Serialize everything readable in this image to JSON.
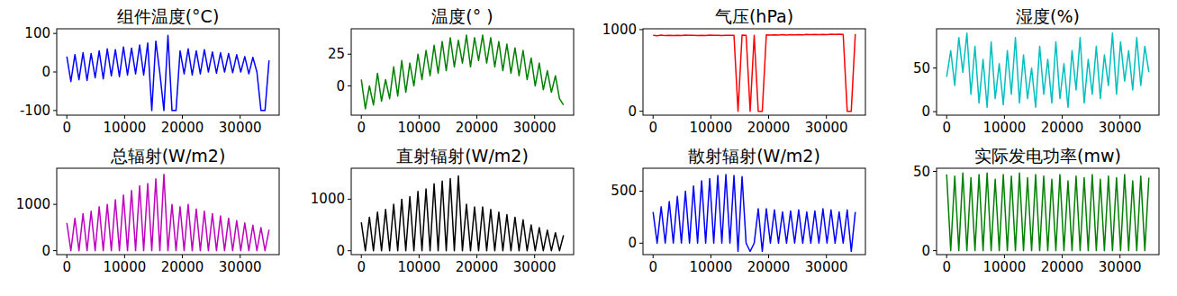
{
  "chart_data": [
    {
      "type": "line",
      "title": "组件温度(°C)",
      "color": "#0000ff",
      "x": [
        0,
        700,
        1400,
        2100,
        2800,
        3500,
        4200,
        4900,
        5600,
        6300,
        7000,
        7700,
        8400,
        9100,
        9800,
        10500,
        11200,
        11900,
        12600,
        13300,
        14000,
        14700,
        15400,
        16100,
        16800,
        17500,
        18200,
        18900,
        19600,
        20300,
        21000,
        21700,
        22400,
        23100,
        23800,
        24500,
        25200,
        25900,
        26600,
        27300,
        28000,
        28700,
        29400,
        30100,
        30800,
        31500,
        32200,
        32900,
        33600,
        34300,
        35000
      ],
      "values": [
        40,
        -25,
        45,
        -20,
        50,
        -22,
        48,
        -15,
        55,
        -18,
        60,
        -10,
        58,
        -12,
        65,
        -8,
        62,
        -5,
        70,
        -8,
        75,
        -100,
        80,
        -3,
        -100,
        95,
        -100,
        -100,
        55,
        -5,
        60,
        -8,
        55,
        -5,
        58,
        0,
        52,
        -3,
        50,
        0,
        48,
        -2,
        45,
        0,
        40,
        -5,
        38,
        0,
        -100,
        -100,
        30
      ],
      "xlim": [
        -1750,
        36750
      ],
      "ylim": [
        -112,
        112
      ],
      "xticks": [
        0,
        10000,
        20000,
        30000
      ],
      "yticks": [
        -100,
        0,
        100
      ]
    },
    {
      "type": "line",
      "title": "温度(° )",
      "color": "#008000",
      "x": [
        0,
        700,
        1400,
        2100,
        2800,
        3500,
        4200,
        4900,
        5600,
        6300,
        7000,
        7700,
        8400,
        9100,
        9800,
        10500,
        11200,
        11900,
        12600,
        13300,
        14000,
        14700,
        15400,
        16100,
        16800,
        17500,
        18200,
        18900,
        19600,
        20300,
        21000,
        21700,
        22400,
        23100,
        23800,
        24500,
        25200,
        25900,
        26600,
        27300,
        28000,
        28700,
        29400,
        30100,
        30800,
        31500,
        32200,
        32900,
        33600,
        34300,
        35000
      ],
      "values": [
        5,
        -18,
        0,
        -15,
        10,
        -12,
        5,
        -10,
        15,
        -8,
        20,
        -5,
        18,
        0,
        25,
        5,
        28,
        8,
        32,
        10,
        35,
        12,
        38,
        15,
        36,
        18,
        40,
        15,
        38,
        20,
        40,
        18,
        38,
        15,
        35,
        12,
        33,
        10,
        30,
        8,
        28,
        5,
        22,
        0,
        18,
        -3,
        12,
        -5,
        8,
        -10,
        -15
      ],
      "xlim": [
        -1750,
        36750
      ],
      "ylim": [
        -23,
        45
      ],
      "xticks": [
        0,
        10000,
        20000,
        30000
      ],
      "yticks": [
        0,
        25
      ]
    },
    {
      "type": "line",
      "title": "气压(hPa)",
      "color": "#ff0000",
      "x": [
        0,
        700,
        1400,
        2100,
        2800,
        3500,
        4200,
        4900,
        5600,
        6300,
        7000,
        7700,
        8400,
        9100,
        9800,
        10500,
        11200,
        11900,
        12600,
        13300,
        14000,
        14700,
        15400,
        16100,
        16800,
        17500,
        18200,
        18900,
        19600,
        20300,
        21000,
        21700,
        22400,
        23100,
        23800,
        24500,
        25200,
        25900,
        26600,
        27300,
        28000,
        28700,
        29400,
        30100,
        30800,
        31500,
        32200,
        32900,
        33600,
        34300,
        35000
      ],
      "values": [
        930,
        925,
        932,
        926,
        931,
        928,
        930,
        927,
        933,
        929,
        931,
        928,
        930,
        927,
        932,
        929,
        930,
        928,
        931,
        929,
        930,
        0,
        932,
        930,
        0,
        931,
        0,
        0,
        935,
        932,
        936,
        933,
        937,
        934,
        938,
        935,
        939,
        936,
        940,
        937,
        941,
        938,
        942,
        939,
        943,
        940,
        944,
        941,
        0,
        0,
        945
      ],
      "xlim": [
        -1750,
        36750
      ],
      "ylim": [
        -48,
        1010
      ],
      "xticks": [
        0,
        10000,
        20000,
        30000
      ],
      "yticks": [
        0,
        1000
      ]
    },
    {
      "type": "line",
      "title": "湿度(%)",
      "color": "#00bfbf",
      "x": [
        0,
        700,
        1400,
        2100,
        2800,
        3500,
        4200,
        4900,
        5600,
        6300,
        7000,
        7700,
        8400,
        9100,
        9800,
        10500,
        11200,
        11900,
        12600,
        13300,
        14000,
        14700,
        15400,
        16100,
        16800,
        17500,
        18200,
        18900,
        19600,
        20300,
        21000,
        21700,
        22400,
        23100,
        23800,
        24500,
        25200,
        25900,
        26600,
        27300,
        28000,
        28700,
        29400,
        30100,
        30800,
        31500,
        32200,
        32900,
        33600,
        34300,
        35000
      ],
      "values": [
        40,
        70,
        30,
        85,
        45,
        90,
        20,
        75,
        10,
        60,
        5,
        80,
        15,
        55,
        8,
        70,
        20,
        85,
        10,
        65,
        15,
        50,
        5,
        75,
        20,
        60,
        10,
        80,
        15,
        55,
        5,
        70,
        25,
        85,
        10,
        60,
        20,
        75,
        15,
        65,
        30,
        90,
        20,
        80,
        35,
        70,
        25,
        85,
        30,
        75,
        45
      ],
      "xlim": [
        -1750,
        36750
      ],
      "ylim": [
        -4,
        95
      ],
      "xticks": [
        0,
        10000,
        20000,
        30000
      ],
      "yticks": [
        0,
        50
      ]
    },
    {
      "type": "line",
      "title": "总辐射(W/m2)",
      "color": "#bf00bf",
      "x": [
        0,
        700,
        1400,
        2100,
        2800,
        3500,
        4200,
        4900,
        5600,
        6300,
        7000,
        7700,
        8400,
        9100,
        9800,
        10500,
        11200,
        11900,
        12600,
        13300,
        14000,
        14700,
        15400,
        16100,
        16800,
        17500,
        18200,
        18900,
        19600,
        20300,
        21000,
        21700,
        22400,
        23100,
        23800,
        24500,
        25200,
        25900,
        26600,
        27300,
        28000,
        28700,
        29400,
        30100,
        30800,
        31500,
        32200,
        32900,
        33600,
        34300,
        35000
      ],
      "values": [
        600,
        0,
        700,
        0,
        800,
        0,
        850,
        0,
        950,
        0,
        1000,
        0,
        1100,
        0,
        1200,
        0,
        1300,
        0,
        1400,
        0,
        1450,
        0,
        1550,
        0,
        1650,
        0,
        1000,
        0,
        950,
        0,
        1000,
        0,
        900,
        0,
        850,
        0,
        800,
        0,
        750,
        0,
        700,
        0,
        650,
        0,
        600,
        0,
        550,
        0,
        500,
        0,
        450
      ],
      "xlim": [
        -1750,
        36750
      ],
      "ylim": [
        -85,
        1780
      ],
      "xticks": [
        0,
        10000,
        20000,
        30000
      ],
      "yticks": [
        0,
        1000
      ]
    },
    {
      "type": "line",
      "title": "直射辐射(W/m2)",
      "color": "#000000",
      "x": [
        0,
        700,
        1400,
        2100,
        2800,
        3500,
        4200,
        4900,
        5600,
        6300,
        7000,
        7700,
        8400,
        9100,
        9800,
        10500,
        11200,
        11900,
        12600,
        13300,
        14000,
        14700,
        15400,
        16100,
        16800,
        17500,
        18200,
        18900,
        19600,
        20300,
        21000,
        21700,
        22400,
        23100,
        23800,
        24500,
        25200,
        25900,
        26600,
        27300,
        28000,
        28700,
        29400,
        30100,
        30800,
        31500,
        32200,
        32900,
        33600,
        34300,
        35000
      ],
      "values": [
        550,
        0,
        650,
        0,
        750,
        0,
        800,
        0,
        900,
        0,
        1000,
        0,
        1050,
        0,
        1150,
        0,
        1200,
        0,
        1300,
        0,
        1350,
        0,
        1400,
        0,
        1450,
        0,
        900,
        0,
        850,
        0,
        850,
        0,
        800,
        0,
        750,
        0,
        700,
        0,
        650,
        0,
        600,
        0,
        500,
        0,
        450,
        0,
        400,
        0,
        350,
        0,
        300
      ],
      "xlim": [
        -1750,
        36750
      ],
      "ylim": [
        -75,
        1600
      ],
      "xticks": [
        0,
        10000,
        20000,
        30000
      ],
      "yticks": [
        0,
        1000
      ]
    },
    {
      "type": "line",
      "title": "散射辐射(W/m2)",
      "color": "#0000ff",
      "x": [
        0,
        700,
        1400,
        2100,
        2800,
        3500,
        4200,
        4900,
        5600,
        6300,
        7000,
        7700,
        8400,
        9100,
        9800,
        10500,
        11200,
        11900,
        12600,
        13300,
        14000,
        14700,
        15400,
        16100,
        16800,
        17500,
        18200,
        18900,
        19600,
        20300,
        21000,
        21700,
        22400,
        23100,
        23800,
        24500,
        25200,
        25900,
        26600,
        27300,
        28000,
        28700,
        29400,
        30100,
        30800,
        31500,
        32200,
        32900,
        33600,
        34300,
        35000
      ],
      "values": [
        300,
        0,
        350,
        0,
        400,
        0,
        450,
        0,
        500,
        0,
        550,
        0,
        600,
        0,
        620,
        0,
        650,
        0,
        660,
        0,
        650,
        -80,
        640,
        0,
        -80,
        0,
        330,
        -80,
        330,
        0,
        320,
        0,
        300,
        0,
        310,
        0,
        320,
        0,
        300,
        0,
        310,
        0,
        330,
        0,
        320,
        0,
        300,
        0,
        320,
        -80,
        300
      ],
      "xlim": [
        -1750,
        36750
      ],
      "ylim": [
        -110,
        720
      ],
      "xticks": [
        0,
        10000,
        20000,
        30000
      ],
      "yticks": [
        0,
        500
      ]
    },
    {
      "type": "line",
      "title": "实际发电功率(mw)",
      "color": "#008000",
      "x": [
        0,
        700,
        1400,
        2100,
        2800,
        3500,
        4200,
        4900,
        5600,
        6300,
        7000,
        7700,
        8400,
        9100,
        9800,
        10500,
        11200,
        11900,
        12600,
        13300,
        14000,
        14700,
        15400,
        16100,
        16800,
        17500,
        18200,
        18900,
        19600,
        20300,
        21000,
        21700,
        22400,
        23100,
        23800,
        24500,
        25200,
        25900,
        26600,
        27300,
        28000,
        28700,
        29400,
        30100,
        30800,
        31500,
        32200,
        32900,
        33600,
        34300,
        35000
      ],
      "values": [
        48,
        0,
        47,
        0,
        49,
        0,
        46,
        0,
        48,
        0,
        49,
        0,
        45,
        0,
        48,
        0,
        47,
        0,
        49,
        0,
        46,
        0,
        48,
        0,
        47,
        0,
        45,
        0,
        48,
        0,
        44,
        0,
        47,
        0,
        46,
        0,
        48,
        0,
        45,
        0,
        47,
        0,
        46,
        0,
        48,
        0,
        44,
        0,
        47,
        0,
        46
      ],
      "xlim": [
        -1750,
        36750
      ],
      "ylim": [
        -2.5,
        52
      ],
      "xticks": [
        0,
        10000,
        20000,
        30000
      ],
      "yticks": [
        0,
        50
      ]
    }
  ]
}
